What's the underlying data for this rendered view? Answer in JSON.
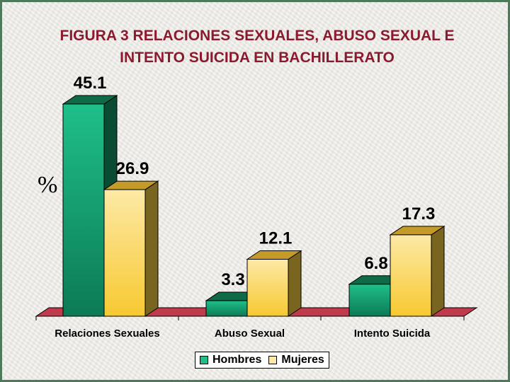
{
  "chart_data": {
    "type": "bar",
    "title": "FIGURA 3 RELACIONES SEXUALES, ABUSO SEXUAL E INTENTO SUICIDA EN BACHILLERATO",
    "title_lines": [
      "FIGURA 3 RELACIONES SEXUALES, ABUSO SEXUAL E",
      "INTENTO SUICIDA EN BACHILLERATO"
    ],
    "ylabel": "%",
    "xlabel": "",
    "categories": [
      "Relaciones Sexuales",
      "Abuso Sexual",
      "Intento Suicida"
    ],
    "series": [
      {
        "name": "Hombres",
        "values": [
          45.1,
          3.3,
          6.8
        ],
        "labels": [
          "45.1",
          "3.3",
          "6.8"
        ]
      },
      {
        "name": "Mujeres",
        "values": [
          26.9,
          12.1,
          17.3
        ],
        "labels": [
          "26.9",
          "12.1",
          "17.3"
        ]
      }
    ],
    "ylim": [
      0,
      45.1
    ],
    "grid": false,
    "style": "3d-column",
    "legend_position": "bottom"
  },
  "colors": {
    "title": "#8b1a2e",
    "hombres_front": "#1fbf8a",
    "hombres_top": "#0f6a48",
    "hombres_side": "#0a4c33",
    "mujeres_front": "#fde9a6",
    "mujeres_top": "#c49a28",
    "mujeres_side": "#7a6520",
    "floor": "#bf3a4a",
    "frame": "#4e7a5c",
    "background": "#ecebe6"
  }
}
